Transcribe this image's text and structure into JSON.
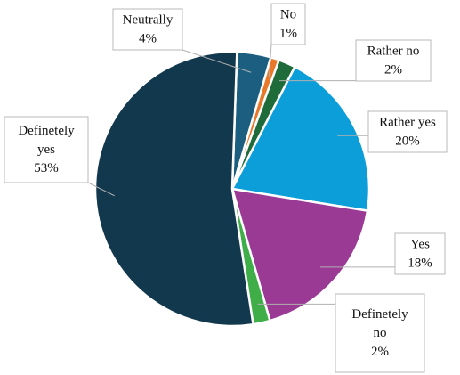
{
  "chart_data": {
    "type": "pie",
    "title": "",
    "unit": "%",
    "slices": [
      {
        "label_lines": [
          "Neutrally"
        ],
        "value": 4,
        "value_label": "4%",
        "color": "#1b5e80"
      },
      {
        "label_lines": [
          "No"
        ],
        "value": 1,
        "value_label": "1%",
        "color": "#e8792b"
      },
      {
        "label_lines": [
          "Rather no"
        ],
        "value": 2,
        "value_label": "2%",
        "color": "#1f6b3a"
      },
      {
        "label_lines": [
          "Rather yes"
        ],
        "value": 20,
        "value_label": "20%",
        "color": "#0c9ed9"
      },
      {
        "label_lines": [
          "Yes"
        ],
        "value": 18,
        "value_label": "18%",
        "color": "#9b3a95"
      },
      {
        "label_lines": [
          "Definetely",
          "no"
        ],
        "value": 2,
        "value_label": "2%",
        "color": "#3fae49"
      },
      {
        "label_lines": [
          "Definetely",
          "yes"
        ],
        "value": 53,
        "value_label": "53%",
        "color": "#12384e"
      }
    ]
  }
}
